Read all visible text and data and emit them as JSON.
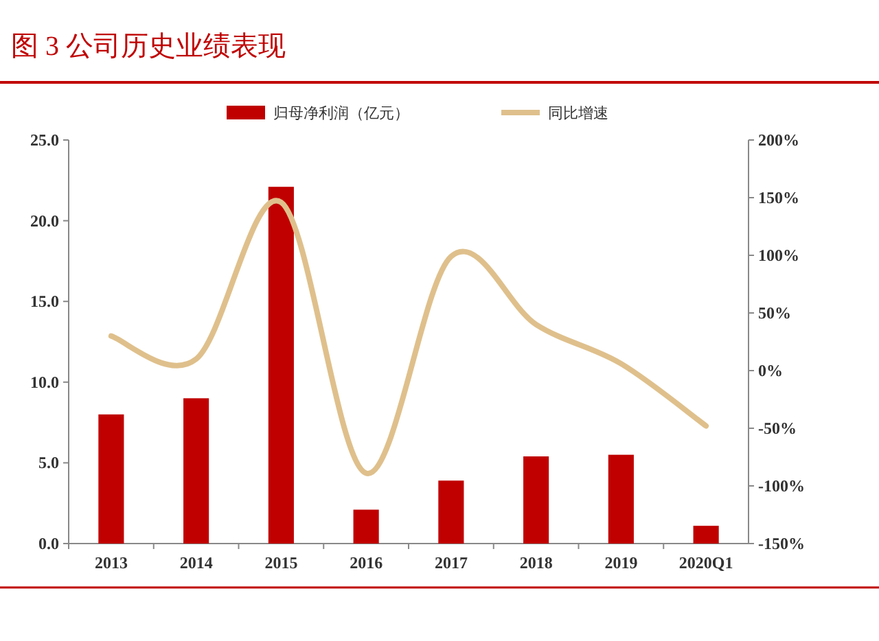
{
  "chart_data": {
    "type": "bar",
    "title": "图 3 公司历史业绩表现",
    "categories": [
      "2013",
      "2014",
      "2015",
      "2016",
      "2017",
      "2018",
      "2019",
      "2020Q1"
    ],
    "series": [
      {
        "name": "归母净利润（亿元）",
        "color": "#c00000",
        "values": [
          8.0,
          9.0,
          22.1,
          2.1,
          3.9,
          5.4,
          5.5,
          1.1
        ]
      },
      {
        "name": "同比增速",
        "type": "line",
        "axis": "y2",
        "color": "#dfc08c",
        "values": [
          30,
          10,
          146,
          -89,
          99,
          40,
          6,
          -48
        ]
      }
    ],
    "ylim": [
      0,
      25
    ],
    "yticks": [
      {
        "value": 0,
        "label": "0.0"
      },
      {
        "value": 5,
        "label": "5.0"
      },
      {
        "value": 10,
        "label": "10.0"
      },
      {
        "value": 15,
        "label": "15.0"
      },
      {
        "value": 20,
        "label": "20.0"
      },
      {
        "value": 25,
        "label": "25.0"
      }
    ],
    "y2lim": [
      -150,
      200
    ],
    "y2ticks": [
      {
        "value": -150,
        "label": "-150%"
      },
      {
        "value": -100,
        "label": "-100%"
      },
      {
        "value": -50,
        "label": "-50%"
      },
      {
        "value": 0,
        "label": "0%"
      },
      {
        "value": 50,
        "label": "50%"
      },
      {
        "value": 100,
        "label": "100%"
      },
      {
        "value": 150,
        "label": "150%"
      },
      {
        "value": 200,
        "label": "200%"
      }
    ],
    "grid": false,
    "legend": "top",
    "marker": "none",
    "line_style": "solid"
  }
}
